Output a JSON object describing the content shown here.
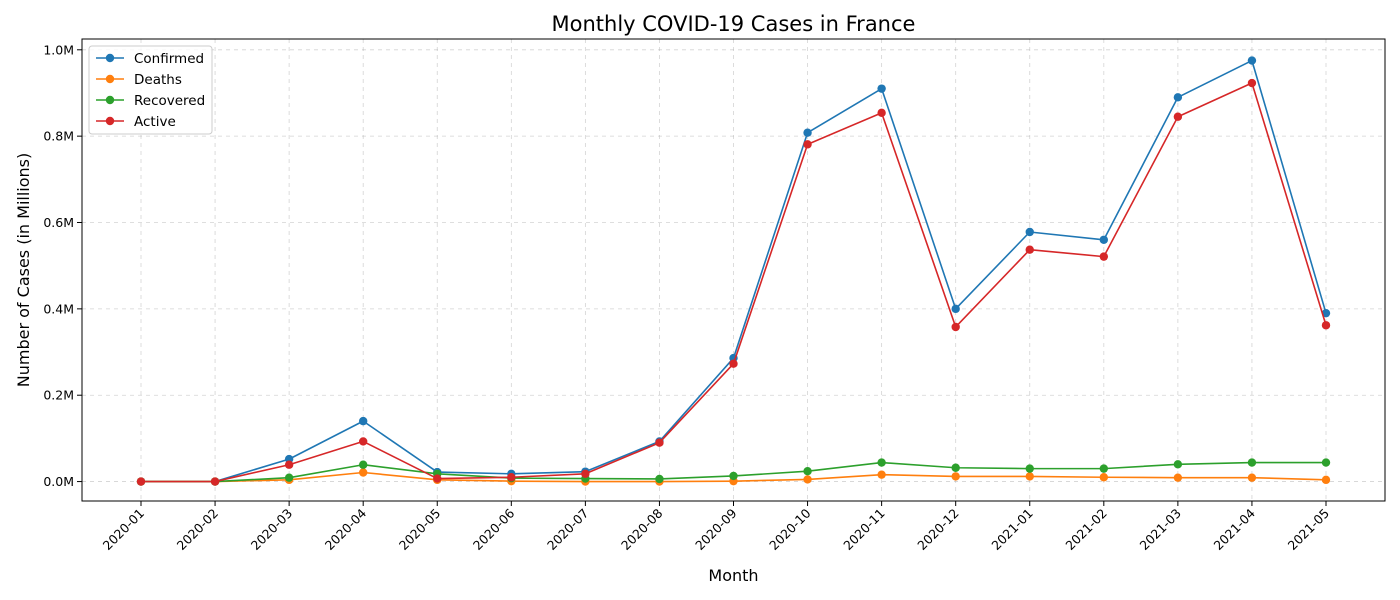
{
  "chart_data": {
    "type": "line",
    "title": "Monthly COVID-19 Cases in France",
    "xlabel": "Month",
    "ylabel": "Number of Cases (in Millions)",
    "ylim": [
      -0.045,
      1.025
    ],
    "y_ticks": [
      0,
      0.2,
      0.4,
      0.6,
      0.8,
      1.0
    ],
    "y_tick_labels": [
      "0.0M",
      "0.2M",
      "0.4M",
      "0.6M",
      "0.8M",
      "1.0M"
    ],
    "grid": true,
    "legend_position": "top-left",
    "categories": [
      "2020-01",
      "2020-02",
      "2020-03",
      "2020-04",
      "2020-05",
      "2020-06",
      "2020-07",
      "2020-08",
      "2020-09",
      "2020-10",
      "2020-11",
      "2020-12",
      "2021-01",
      "2021-02",
      "2021-03",
      "2021-04",
      "2021-05"
    ],
    "series": [
      {
        "name": "Confirmed",
        "color": "#1f77b4",
        "values": [
          0.0,
          0.0,
          0.052,
          0.14,
          0.022,
          0.018,
          0.023,
          0.093,
          0.286,
          0.808,
          0.91,
          0.4,
          0.578,
          0.56,
          0.89,
          0.975,
          0.39
        ]
      },
      {
        "name": "Deaths",
        "color": "#ff7f0e",
        "values": [
          0.0,
          0.0,
          0.004,
          0.021,
          0.004,
          0.001,
          0.0,
          0.0,
          0.001,
          0.005,
          0.016,
          0.012,
          0.012,
          0.01,
          0.009,
          0.009,
          0.004
        ]
      },
      {
        "name": "Recovered",
        "color": "#2ca02c",
        "values": [
          0.0,
          0.0,
          0.009,
          0.039,
          0.018,
          0.008,
          0.007,
          0.006,
          0.013,
          0.024,
          0.044,
          0.032,
          0.03,
          0.03,
          0.04,
          0.044,
          0.044
        ]
      },
      {
        "name": "Active",
        "color": "#d62728",
        "values": [
          0.0,
          0.0,
          0.039,
          0.093,
          0.007,
          0.01,
          0.018,
          0.09,
          0.273,
          0.781,
          0.854,
          0.358,
          0.537,
          0.521,
          0.845,
          0.923,
          0.362
        ]
      }
    ]
  }
}
